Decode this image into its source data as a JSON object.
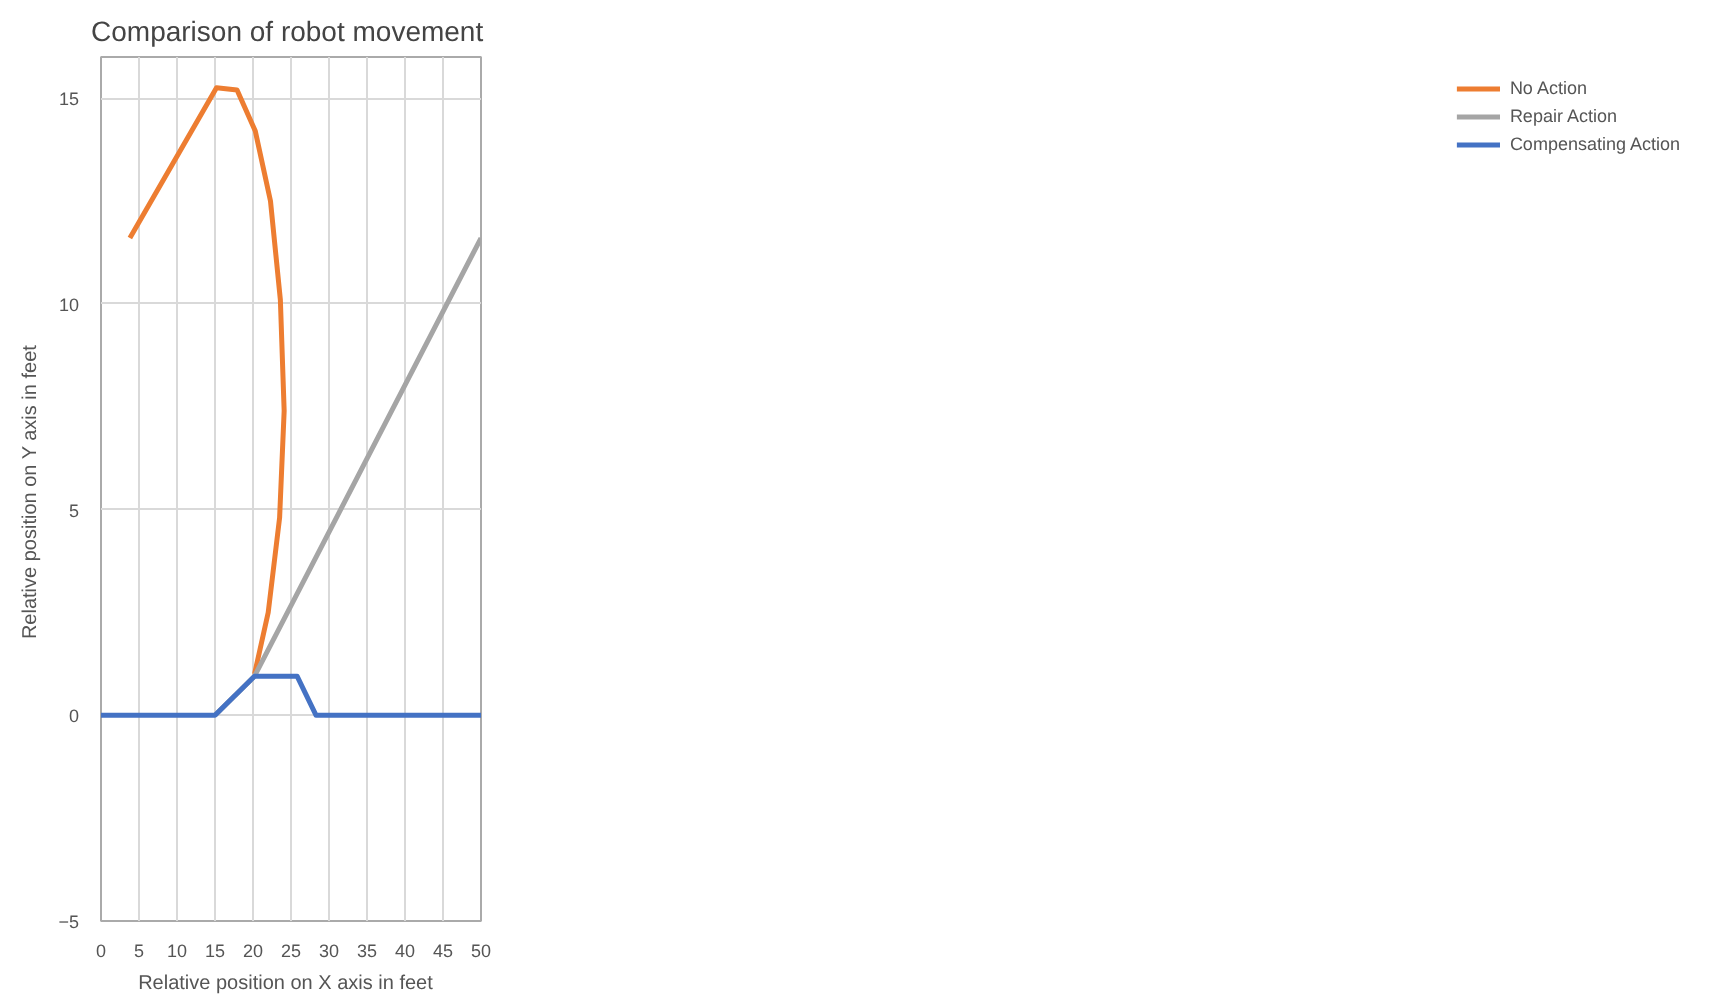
{
  "chart_data": {
    "type": "line",
    "title": "Comparison  of robot movement",
    "xlabel": "Relative position  on X axis  in feet",
    "ylabel": "Relative position  on Y axis in feet",
    "xlim": [
      0,
      50
    ],
    "xticks": [
      0,
      5,
      10,
      15,
      20,
      25,
      30,
      35,
      40,
      45,
      50
    ],
    "ylim": [
      -5,
      16
    ],
    "yticks": [
      -5,
      0,
      5,
      10,
      15
    ],
    "grid": true,
    "legend": "right",
    "marker": "none",
    "line_style": "solid",
    "series": [
      {
        "name": "No Action",
        "color": "#ed7d31",
        "x": [
          3.8,
          15.2,
          17.9,
          20.3,
          22.3,
          23.6,
          24.1,
          23.5,
          22.0,
          20.2
        ],
        "values": [
          11.6,
          15.25,
          15.2,
          14.2,
          12.5,
          10.1,
          7.4,
          4.8,
          2.5,
          1.0
        ]
      },
      {
        "name": "Repair Action",
        "color": "#a5a5a5",
        "x": [
          15,
          20.2,
          50
        ],
        "values": [
          0,
          0.95,
          11.6
        ]
      },
      {
        "name": "Compensating Action",
        "color": "#4472c4",
        "x": [
          0,
          15,
          20.2,
          25.8,
          28.3,
          50
        ],
        "values": [
          0,
          0,
          0.95,
          0.95,
          0,
          0
        ]
      }
    ]
  }
}
